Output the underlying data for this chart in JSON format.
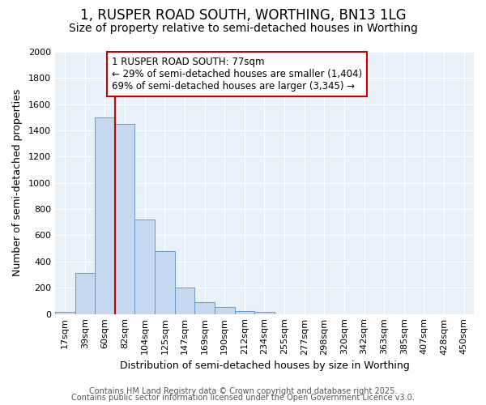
{
  "title_line1": "1, RUSPER ROAD SOUTH, WORTHING, BN13 1LG",
  "title_line2": "Size of property relative to semi-detached houses in Worthing",
  "xlabel": "Distribution of semi-detached houses by size in Worthing",
  "ylabel": "Number of semi-detached properties",
  "categories": [
    "17sqm",
    "39sqm",
    "60sqm",
    "82sqm",
    "104sqm",
    "125sqm",
    "147sqm",
    "169sqm",
    "190sqm",
    "212sqm",
    "234sqm",
    "255sqm",
    "277sqm",
    "298sqm",
    "320sqm",
    "342sqm",
    "363sqm",
    "385sqm",
    "407sqm",
    "428sqm",
    "450sqm"
  ],
  "values": [
    15,
    310,
    1500,
    1450,
    720,
    480,
    200,
    90,
    55,
    20,
    15,
    0,
    0,
    0,
    0,
    0,
    0,
    0,
    0,
    0,
    0
  ],
  "bar_color": "#c5d8f0",
  "bar_edge_color": "#6699cc",
  "bg_color": "#e8f0f8",
  "grid_color": "#ffffff",
  "red_line_color": "#cc0000",
  "red_line_index": 3,
  "annotation_text": "1 RUSPER ROAD SOUTH: 77sqm\n← 29% of semi-detached houses are smaller (1,404)\n69% of semi-detached houses are larger (3,345) →",
  "annotation_box_facecolor": "#ffffff",
  "annotation_box_edgecolor": "#cc0000",
  "ylim": [
    0,
    2000
  ],
  "yticks": [
    0,
    200,
    400,
    600,
    800,
    1000,
    1200,
    1400,
    1600,
    1800,
    2000
  ],
  "footer_line1": "Contains HM Land Registry data © Crown copyright and database right 2025.",
  "footer_line2": "Contains public sector information licensed under the Open Government Licence v3.0.",
  "title_fontsize": 12,
  "subtitle_fontsize": 10,
  "axis_label_fontsize": 9,
  "tick_fontsize": 8,
  "annotation_fontsize": 8.5,
  "footer_fontsize": 7
}
